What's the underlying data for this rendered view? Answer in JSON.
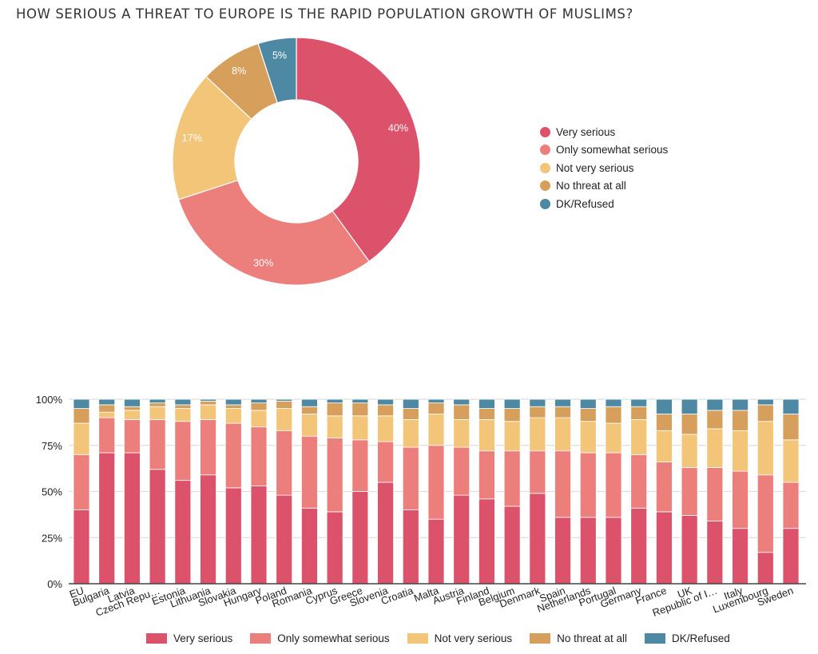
{
  "title": "HOW SERIOUS A THREAT TO EUROPE IS THE RAPID POPULATION GROWTH OF MUSLIMS?",
  "colors": {
    "Very serious": "#dc526a",
    "Only somewhat serious": "#ec7e7c",
    "Not very serious": "#f2c578",
    "No threat at all": "#d6a05c",
    "DK/Refused": "#4e89a3"
  },
  "chart_data": [
    {
      "type": "pie",
      "variant": "donut",
      "title": "HOW SERIOUS A THREAT TO EUROPE IS THE RAPID POPULATION GROWTH OF MUSLIMS?",
      "categories": [
        "Very serious",
        "Only somewhat serious",
        "Not very serious",
        "No threat at all",
        "DK/Refused"
      ],
      "values": [
        40,
        30,
        17,
        8,
        5
      ],
      "labels": [
        "40%",
        "30%",
        "17%",
        "8%",
        "5%"
      ],
      "legend": "right"
    },
    {
      "type": "bar",
      "stacked": true,
      "categories": [
        "EU",
        "Bulgaria",
        "Latvia",
        "Czech Repu…",
        "Estonia",
        "Lithuania",
        "Slovakia",
        "Hungary",
        "Poland",
        "Romania",
        "Cyprus",
        "Greece",
        "Slovenia",
        "Croatia",
        "Malta",
        "Austria",
        "Finland",
        "Belgium",
        "Denmark",
        "Spain",
        "Netherlands",
        "Portugal",
        "Germany",
        "France",
        "UK",
        "Republic of I…",
        "Italy",
        "Luxembourg",
        "Sweden"
      ],
      "series": [
        {
          "name": "Very serious",
          "values": [
            40,
            71,
            71,
            62,
            56,
            59,
            52,
            53,
            48,
            41,
            39,
            50,
            55,
            40,
            35,
            48,
            46,
            42,
            49,
            36,
            36,
            36,
            41,
            39,
            37,
            34,
            30,
            17,
            30
          ]
        },
        {
          "name": "Only somewhat serious",
          "values": [
            30,
            19,
            18,
            27,
            32,
            30,
            35,
            32,
            35,
            39,
            40,
            28,
            22,
            34,
            40,
            26,
            26,
            30,
            23,
            36,
            35,
            35,
            29,
            27,
            26,
            29,
            31,
            42,
            25
          ]
        },
        {
          "name": "Not very serious",
          "values": [
            17,
            3,
            5,
            7,
            7,
            8,
            8,
            9,
            12,
            12,
            12,
            13,
            14,
            15,
            17,
            15,
            17,
            16,
            18,
            18,
            17,
            16,
            19,
            17,
            18,
            21,
            22,
            29,
            23
          ]
        },
        {
          "name": "No threat at all",
          "values": [
            8,
            4,
            2,
            2,
            2,
            2,
            2,
            4,
            4,
            4,
            7,
            7,
            6,
            6,
            6,
            8,
            6,
            7,
            6,
            6,
            7,
            9,
            7,
            9,
            11,
            10,
            11,
            9,
            14
          ]
        },
        {
          "name": "DK/Refused",
          "values": [
            5,
            3,
            4,
            2,
            3,
            1,
            3,
            2,
            1,
            4,
            2,
            2,
            3,
            5,
            2,
            3,
            5,
            5,
            4,
            4,
            5,
            4,
            4,
            8,
            8,
            6,
            6,
            3,
            8
          ]
        }
      ],
      "yticks": [
        "0%",
        "25%",
        "50%",
        "75%",
        "100%"
      ],
      "ylim": [
        0,
        100
      ],
      "grid": true,
      "legend": "bottom"
    }
  ]
}
